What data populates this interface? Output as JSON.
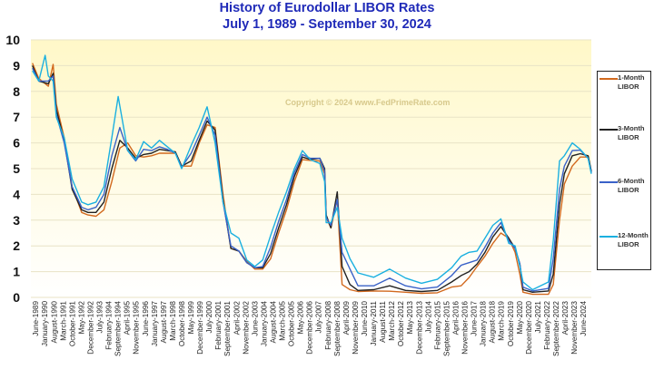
{
  "chart_data": {
    "type": "line",
    "title": "History of Eurodollar LIBOR Rates",
    "subtitle": "July 1, 1989  -  September 30, 2024",
    "watermark": "Copyright © 2024 www.FedPrimeRate.com",
    "ylim": [
      0,
      10
    ],
    "yticks": [
      "0",
      "1",
      "2",
      "3",
      "4",
      "5",
      "6",
      "7",
      "8",
      "9",
      "10"
    ],
    "xlim": [
      1989.4,
      2024.7
    ],
    "grid": true,
    "legend_position": "right",
    "xtick_labels": [
      "June-1989",
      "January-1990",
      "August-1990",
      "March-1991",
      "October-1991",
      "May-1992",
      "December-1992",
      "July-1993",
      "February-1994",
      "September-1994",
      "April-1995",
      "November-1995",
      "June-1996",
      "January-1997",
      "August-1997",
      "March-1998",
      "October-1998",
      "May-1999",
      "December-1999",
      "July-2000",
      "February-2001",
      "September-2001",
      "April-2002",
      "November-2002",
      "June-2003",
      "January-2004",
      "August-2004",
      "March-2005",
      "October-2005",
      "May-2006",
      "December-2006",
      "July-2007",
      "February-2008",
      "September-2008",
      "April-2009",
      "November-2009",
      "June-2010",
      "January-2011",
      "August-2011",
      "March-2012",
      "October-2012",
      "May-2013",
      "December-2013",
      "July-2014",
      "February-2015",
      "September-2015",
      "April-2016",
      "November-2016",
      "June-2017",
      "January-2018",
      "August-2018",
      "March-2019",
      "October-2019",
      "May-2020",
      "December-2020",
      "July-2021",
      "February-2022",
      "September-2022",
      "April-2023",
      "November-2023",
      "June-2024"
    ],
    "series": [
      {
        "name": "1-Month LIBOR",
        "color": "#d2691e",
        "points": [
          [
            1989.5,
            9.1
          ],
          [
            1989.9,
            8.5
          ],
          [
            1990.5,
            8.2
          ],
          [
            1990.8,
            9.05
          ],
          [
            1991.0,
            7.5
          ],
          [
            1991.5,
            6.2
          ],
          [
            1992.0,
            4.3
          ],
          [
            1992.6,
            3.3
          ],
          [
            1993.0,
            3.2
          ],
          [
            1993.5,
            3.15
          ],
          [
            1994.0,
            3.4
          ],
          [
            1994.5,
            4.5
          ],
          [
            1995.0,
            5.8
          ],
          [
            1995.5,
            6.0
          ],
          [
            1996.0,
            5.5
          ],
          [
            1996.5,
            5.45
          ],
          [
            1997.0,
            5.5
          ],
          [
            1997.5,
            5.6
          ],
          [
            1998.0,
            5.6
          ],
          [
            1998.5,
            5.6
          ],
          [
            1998.9,
            5.1
          ],
          [
            1999.5,
            5.1
          ],
          [
            2000.0,
            6.0
          ],
          [
            2000.5,
            6.7
          ],
          [
            2001.0,
            6.6
          ],
          [
            2001.5,
            4.0
          ],
          [
            2002.0,
            1.9
          ],
          [
            2002.5,
            1.8
          ],
          [
            2003.0,
            1.4
          ],
          [
            2003.5,
            1.1
          ],
          [
            2004.0,
            1.1
          ],
          [
            2004.5,
            1.5
          ],
          [
            2005.0,
            2.5
          ],
          [
            2005.5,
            3.4
          ],
          [
            2006.0,
            4.5
          ],
          [
            2006.5,
            5.35
          ],
          [
            2007.0,
            5.32
          ],
          [
            2007.6,
            5.3
          ],
          [
            2007.9,
            4.8
          ],
          [
            2008.0,
            3.1
          ],
          [
            2008.3,
            2.7
          ],
          [
            2008.7,
            3.8
          ],
          [
            2009.0,
            0.5
          ],
          [
            2009.5,
            0.3
          ],
          [
            2010.0,
            0.23
          ],
          [
            2011.0,
            0.25
          ],
          [
            2012.0,
            0.24
          ],
          [
            2013.0,
            0.2
          ],
          [
            2014.0,
            0.16
          ],
          [
            2015.0,
            0.18
          ],
          [
            2015.9,
            0.4
          ],
          [
            2016.5,
            0.45
          ],
          [
            2017.0,
            0.77
          ],
          [
            2017.5,
            1.2
          ],
          [
            2018.0,
            1.6
          ],
          [
            2018.5,
            2.1
          ],
          [
            2019.0,
            2.5
          ],
          [
            2019.5,
            2.3
          ],
          [
            2019.9,
            1.75
          ],
          [
            2020.2,
            0.9
          ],
          [
            2020.4,
            0.2
          ],
          [
            2021.0,
            0.12
          ],
          [
            2022.0,
            0.12
          ],
          [
            2022.3,
            0.5
          ],
          [
            2022.7,
            3.0
          ],
          [
            2023.0,
            4.4
          ],
          [
            2023.5,
            5.1
          ],
          [
            2024.0,
            5.45
          ],
          [
            2024.5,
            5.45
          ],
          [
            2024.7,
            4.85
          ]
        ]
      },
      {
        "name": "3-Month LIBOR",
        "color": "#222222",
        "points": [
          [
            1989.5,
            9.0
          ],
          [
            1989.9,
            8.4
          ],
          [
            1990.5,
            8.3
          ],
          [
            1990.8,
            8.7
          ],
          [
            1991.0,
            7.3
          ],
          [
            1991.5,
            6.1
          ],
          [
            1992.0,
            4.2
          ],
          [
            1992.6,
            3.4
          ],
          [
            1993.0,
            3.3
          ],
          [
            1993.5,
            3.3
          ],
          [
            1994.0,
            3.7
          ],
          [
            1994.5,
            5.0
          ],
          [
            1995.0,
            6.1
          ],
          [
            1995.5,
            5.8
          ],
          [
            1996.0,
            5.4
          ],
          [
            1996.5,
            5.55
          ],
          [
            1997.0,
            5.6
          ],
          [
            1997.5,
            5.75
          ],
          [
            1998.0,
            5.7
          ],
          [
            1998.5,
            5.65
          ],
          [
            1998.9,
            5.1
          ],
          [
            1999.5,
            5.3
          ],
          [
            2000.0,
            6.1
          ],
          [
            2000.5,
            6.85
          ],
          [
            2001.0,
            6.5
          ],
          [
            2001.5,
            3.8
          ],
          [
            2002.0,
            1.9
          ],
          [
            2002.5,
            1.8
          ],
          [
            2003.0,
            1.35
          ],
          [
            2003.5,
            1.15
          ],
          [
            2004.0,
            1.15
          ],
          [
            2004.5,
            1.7
          ],
          [
            2005.0,
            2.7
          ],
          [
            2005.5,
            3.6
          ],
          [
            2006.0,
            4.7
          ],
          [
            2006.5,
            5.45
          ],
          [
            2007.0,
            5.36
          ],
          [
            2007.6,
            5.4
          ],
          [
            2007.9,
            5.0
          ],
          [
            2008.0,
            3.2
          ],
          [
            2008.3,
            2.7
          ],
          [
            2008.7,
            4.1
          ],
          [
            2009.0,
            1.2
          ],
          [
            2009.5,
            0.5
          ],
          [
            2010.0,
            0.27
          ],
          [
            2011.0,
            0.3
          ],
          [
            2012.0,
            0.45
          ],
          [
            2013.0,
            0.27
          ],
          [
            2014.0,
            0.23
          ],
          [
            2015.0,
            0.27
          ],
          [
            2015.9,
            0.6
          ],
          [
            2016.5,
            0.85
          ],
          [
            2017.0,
            1.0
          ],
          [
            2017.5,
            1.3
          ],
          [
            2018.0,
            1.75
          ],
          [
            2018.5,
            2.35
          ],
          [
            2019.0,
            2.75
          ],
          [
            2019.5,
            2.3
          ],
          [
            2019.9,
            1.9
          ],
          [
            2020.2,
            1.3
          ],
          [
            2020.4,
            0.3
          ],
          [
            2021.0,
            0.2
          ],
          [
            2022.0,
            0.25
          ],
          [
            2022.3,
            0.9
          ],
          [
            2022.7,
            3.6
          ],
          [
            2023.0,
            4.8
          ],
          [
            2023.5,
            5.5
          ],
          [
            2024.0,
            5.58
          ],
          [
            2024.5,
            5.5
          ],
          [
            2024.7,
            4.9
          ]
        ]
      },
      {
        "name": "6-Month LIBOR",
        "color": "#3a62c8",
        "points": [
          [
            1989.5,
            8.9
          ],
          [
            1989.9,
            8.4
          ],
          [
            1990.5,
            8.4
          ],
          [
            1990.8,
            8.6
          ],
          [
            1991.0,
            7.1
          ],
          [
            1991.5,
            6.0
          ],
          [
            1992.0,
            4.3
          ],
          [
            1992.6,
            3.5
          ],
          [
            1993.0,
            3.4
          ],
          [
            1993.5,
            3.5
          ],
          [
            1994.0,
            4.0
          ],
          [
            1994.5,
            5.5
          ],
          [
            1995.0,
            6.6
          ],
          [
            1995.5,
            5.7
          ],
          [
            1996.0,
            5.3
          ],
          [
            1996.5,
            5.75
          ],
          [
            1997.0,
            5.7
          ],
          [
            1997.5,
            5.85
          ],
          [
            1998.0,
            5.75
          ],
          [
            1998.5,
            5.6
          ],
          [
            1998.9,
            5.05
          ],
          [
            1999.5,
            5.6
          ],
          [
            2000.0,
            6.3
          ],
          [
            2000.5,
            7.0
          ],
          [
            2001.0,
            6.3
          ],
          [
            2001.5,
            3.7
          ],
          [
            2002.0,
            2.0
          ],
          [
            2002.5,
            1.8
          ],
          [
            2003.0,
            1.35
          ],
          [
            2003.5,
            1.15
          ],
          [
            2004.0,
            1.2
          ],
          [
            2004.5,
            1.95
          ],
          [
            2005.0,
            2.95
          ],
          [
            2005.5,
            3.8
          ],
          [
            2006.0,
            4.85
          ],
          [
            2006.5,
            5.55
          ],
          [
            2007.0,
            5.4
          ],
          [
            2007.6,
            5.4
          ],
          [
            2007.9,
            4.9
          ],
          [
            2008.0,
            3.1
          ],
          [
            2008.3,
            2.8
          ],
          [
            2008.7,
            3.8
          ],
          [
            2009.0,
            1.75
          ],
          [
            2009.5,
            1.1
          ],
          [
            2010.0,
            0.45
          ],
          [
            2011.0,
            0.45
          ],
          [
            2012.0,
            0.75
          ],
          [
            2013.0,
            0.45
          ],
          [
            2014.0,
            0.33
          ],
          [
            2015.0,
            0.4
          ],
          [
            2015.9,
            0.85
          ],
          [
            2016.5,
            1.25
          ],
          [
            2017.0,
            1.35
          ],
          [
            2017.5,
            1.45
          ],
          [
            2018.0,
            1.95
          ],
          [
            2018.5,
            2.5
          ],
          [
            2019.0,
            2.9
          ],
          [
            2019.5,
            2.2
          ],
          [
            2019.9,
            1.9
          ],
          [
            2020.2,
            1.3
          ],
          [
            2020.4,
            0.4
          ],
          [
            2021.0,
            0.25
          ],
          [
            2022.0,
            0.35
          ],
          [
            2022.3,
            1.5
          ],
          [
            2022.7,
            4.2
          ],
          [
            2023.0,
            5.1
          ],
          [
            2023.5,
            5.7
          ],
          [
            2024.0,
            5.72
          ],
          [
            2024.5,
            5.4
          ],
          [
            2024.7,
            4.85
          ]
        ]
      },
      {
        "name": "12-Month LIBOR",
        "color": "#1ab0e0",
        "points": [
          [
            1989.5,
            8.8
          ],
          [
            1989.9,
            8.4
          ],
          [
            1990.3,
            9.4
          ],
          [
            1990.5,
            8.6
          ],
          [
            1990.8,
            8.4
          ],
          [
            1991.0,
            7.0
          ],
          [
            1991.5,
            6.2
          ],
          [
            1992.0,
            4.6
          ],
          [
            1992.6,
            3.7
          ],
          [
            1993.0,
            3.6
          ],
          [
            1993.5,
            3.7
          ],
          [
            1994.0,
            4.3
          ],
          [
            1994.5,
            6.2
          ],
          [
            1994.9,
            7.8
          ],
          [
            1995.5,
            5.7
          ],
          [
            1996.0,
            5.35
          ],
          [
            1996.5,
            6.05
          ],
          [
            1997.0,
            5.8
          ],
          [
            1997.5,
            6.1
          ],
          [
            1998.0,
            5.85
          ],
          [
            1998.5,
            5.6
          ],
          [
            1998.9,
            5.0
          ],
          [
            1999.5,
            5.9
          ],
          [
            2000.0,
            6.6
          ],
          [
            2000.5,
            7.4
          ],
          [
            2001.0,
            6.0
          ],
          [
            2001.5,
            3.7
          ],
          [
            2002.0,
            2.5
          ],
          [
            2002.5,
            2.3
          ],
          [
            2003.0,
            1.45
          ],
          [
            2003.5,
            1.2
          ],
          [
            2004.0,
            1.45
          ],
          [
            2004.5,
            2.4
          ],
          [
            2005.0,
            3.3
          ],
          [
            2005.5,
            4.1
          ],
          [
            2006.0,
            5.0
          ],
          [
            2006.5,
            5.7
          ],
          [
            2007.0,
            5.35
          ],
          [
            2007.6,
            5.2
          ],
          [
            2007.9,
            4.5
          ],
          [
            2008.0,
            2.9
          ],
          [
            2008.3,
            2.9
          ],
          [
            2008.7,
            3.5
          ],
          [
            2009.0,
            2.3
          ],
          [
            2009.5,
            1.5
          ],
          [
            2010.0,
            0.95
          ],
          [
            2011.0,
            0.78
          ],
          [
            2012.0,
            1.1
          ],
          [
            2013.0,
            0.75
          ],
          [
            2014.0,
            0.55
          ],
          [
            2015.0,
            0.7
          ],
          [
            2015.9,
            1.15
          ],
          [
            2016.5,
            1.6
          ],
          [
            2017.0,
            1.75
          ],
          [
            2017.5,
            1.8
          ],
          [
            2018.0,
            2.3
          ],
          [
            2018.5,
            2.8
          ],
          [
            2019.0,
            3.05
          ],
          [
            2019.5,
            2.1
          ],
          [
            2019.9,
            2.0
          ],
          [
            2020.2,
            1.2
          ],
          [
            2020.4,
            0.6
          ],
          [
            2021.0,
            0.3
          ],
          [
            2022.0,
            0.6
          ],
          [
            2022.3,
            2.2
          ],
          [
            2022.7,
            5.3
          ],
          [
            2023.0,
            5.5
          ],
          [
            2023.5,
            6.0
          ],
          [
            2024.0,
            5.75
          ],
          [
            2024.5,
            5.4
          ],
          [
            2024.7,
            4.8
          ]
        ]
      }
    ]
  },
  "legend": [
    {
      "line1": "1-Month",
      "line2": "LIBOR"
    },
    {
      "line1": "3-Month",
      "line2": "LIBOR"
    },
    {
      "line1": "6-Month",
      "line2": "LIBOR"
    },
    {
      "line1": "12-Month",
      "line2": "LIBOR"
    }
  ]
}
